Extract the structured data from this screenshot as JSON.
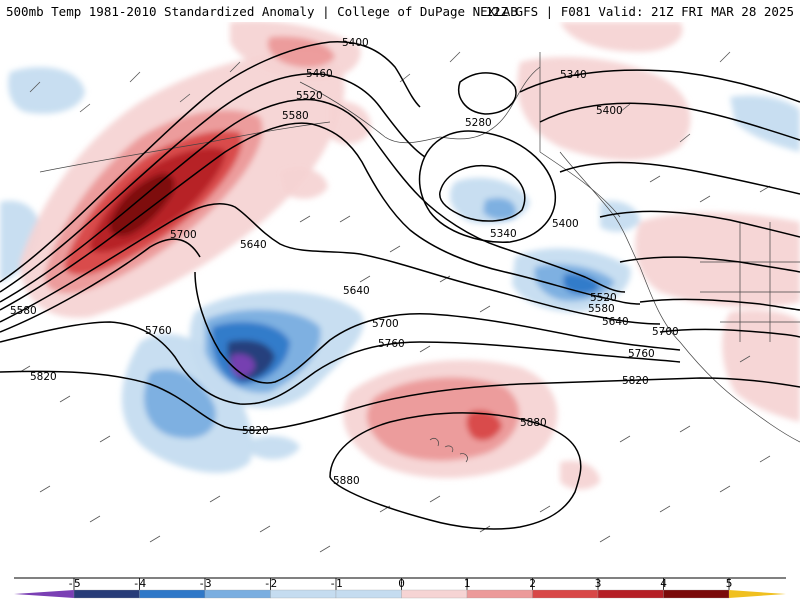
{
  "header": {
    "left_title": "500mb Temp 1981-2010 Standardized Anomaly | College of DuPage NEXLAB",
    "right_title": "12Z GFS | F081 Valid: 21Z FRI MAR 28 2025"
  },
  "colors": {
    "neg5": "#7a3fb4",
    "neg4": "#283c78",
    "neg3": "#2f78c8",
    "neg2": "#7aaee0",
    "neg1": "#c5dcf0",
    "neutral": "#ffffff",
    "pos1": "#f6d4d4",
    "pos2": "#ec9a9a",
    "pos3": "#d84848",
    "pos4": "#b51f26",
    "pos5": "#7a0a0a",
    "pos_extreme": "#f0c020"
  },
  "colorbar": {
    "ticks": [
      "-5",
      "-4",
      "-3",
      "-2",
      "-1",
      "0",
      "1",
      "2",
      "3",
      "4",
      "5"
    ]
  },
  "contour_labels": {
    "c5400a": "5400",
    "c5460": "5460",
    "c5520a": "5520",
    "c5580a": "5580",
    "c5700a": "5700",
    "c5640a": "5640",
    "c5580b": "5580",
    "c5760a": "5760",
    "c5820a": "5820",
    "c5640b": "5640",
    "c5700b": "5700",
    "c5760b": "5760",
    "c5820b": "5820",
    "c5880a": "5880",
    "c5880b": "5880",
    "c5340a": "5340",
    "c5400b": "5400",
    "c5280": "5280",
    "c5340b": "5340",
    "c5400c": "5400",
    "c5520b": "5520",
    "c5580c": "5580",
    "c5640c": "5640",
    "c5700c": "5700",
    "c5760c": "5760",
    "c5820c": "5820"
  }
}
